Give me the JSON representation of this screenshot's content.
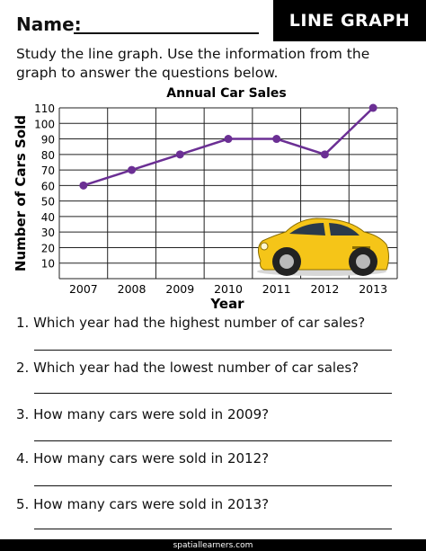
{
  "header": {
    "name_label": "Name:",
    "badge": "LINE GRAPH"
  },
  "instructions": "Study the line graph. Use the information from the graph to answer the questions below.",
  "chart_data": {
    "type": "line",
    "title": "Annual Car Sales",
    "xlabel": "Year",
    "ylabel": "Number of Cars Sold",
    "x": [
      "2007",
      "2008",
      "2009",
      "2010",
      "2011",
      "2012",
      "2013"
    ],
    "y_ticks": [
      "10",
      "20",
      "30",
      "40",
      "50",
      "60",
      "70",
      "80",
      "90",
      "100",
      "110"
    ],
    "values": [
      60,
      70,
      80,
      90,
      90,
      80,
      110
    ],
    "ylim": [
      0,
      110
    ],
    "grid": true,
    "line_color": "#6b2f94"
  },
  "car_color": "#f5c518",
  "questions": [
    "1. Which year had the highest number of car sales?",
    "2. Which year had the lowest number of car sales?",
    "3. How many cars were sold in 2009?",
    "4. How many cars were sold in 2012?",
    "5. How many cars were sold in 2013?"
  ],
  "footer": "spatiallearners.com"
}
